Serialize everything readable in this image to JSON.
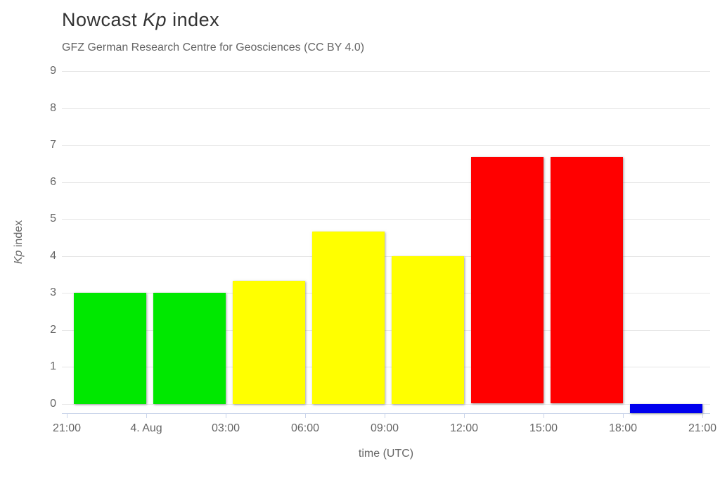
{
  "title": {
    "prefix": "Nowcast ",
    "italic": "Kp",
    "suffix": " index"
  },
  "subtitle": "GFZ German Research Centre for Geosciences (CC BY 4.0)",
  "colors": {
    "quiet_green": "#00e800",
    "active_yellow": "#ffff00",
    "storm_red": "#ff0000",
    "pending_blue": "#0000ee",
    "gridline": "#e6e6e6",
    "axis_line": "#ccd6eb",
    "text_muted": "#666666",
    "title_text": "#333333"
  },
  "chart_data": {
    "type": "bar",
    "title": "Nowcast Kp index",
    "subtitle": "GFZ German Research Centre for Geosciences (CC BY 4.0)",
    "xlabel": "time (UTC)",
    "ylabel": "Kp index",
    "ylabel_parts": {
      "italic": "Kp",
      "rest": " index"
    },
    "ylim": [
      -0.25,
      9
    ],
    "yticks": [
      0,
      1,
      2,
      3,
      4,
      5,
      6,
      7,
      8,
      9
    ],
    "xticklabels": [
      "21:00",
      "4. Aug",
      "03:00",
      "06:00",
      "09:00",
      "12:00",
      "15:00",
      "18:00",
      "21:00"
    ],
    "grid": true,
    "legend": "none",
    "bars": [
      {
        "interval": "21:00-00:00",
        "value": 3.0,
        "color": "#00e800"
      },
      {
        "interval": "00:00-03:00",
        "value": 3.0,
        "color": "#00e800"
      },
      {
        "interval": "03:00-06:00",
        "value": 3.33,
        "color": "#ffff00"
      },
      {
        "interval": "06:00-09:00",
        "value": 4.67,
        "color": "#ffff00"
      },
      {
        "interval": "09:00-12:00",
        "value": 4.0,
        "color": "#ffff00"
      },
      {
        "interval": "12:00-15:00",
        "value": 6.67,
        "color": "#ff0000"
      },
      {
        "interval": "15:00-18:00",
        "value": 6.67,
        "color": "#ff0000"
      },
      {
        "interval": "18:00-21:00",
        "value": -0.25,
        "color": "#0000ee"
      }
    ]
  }
}
